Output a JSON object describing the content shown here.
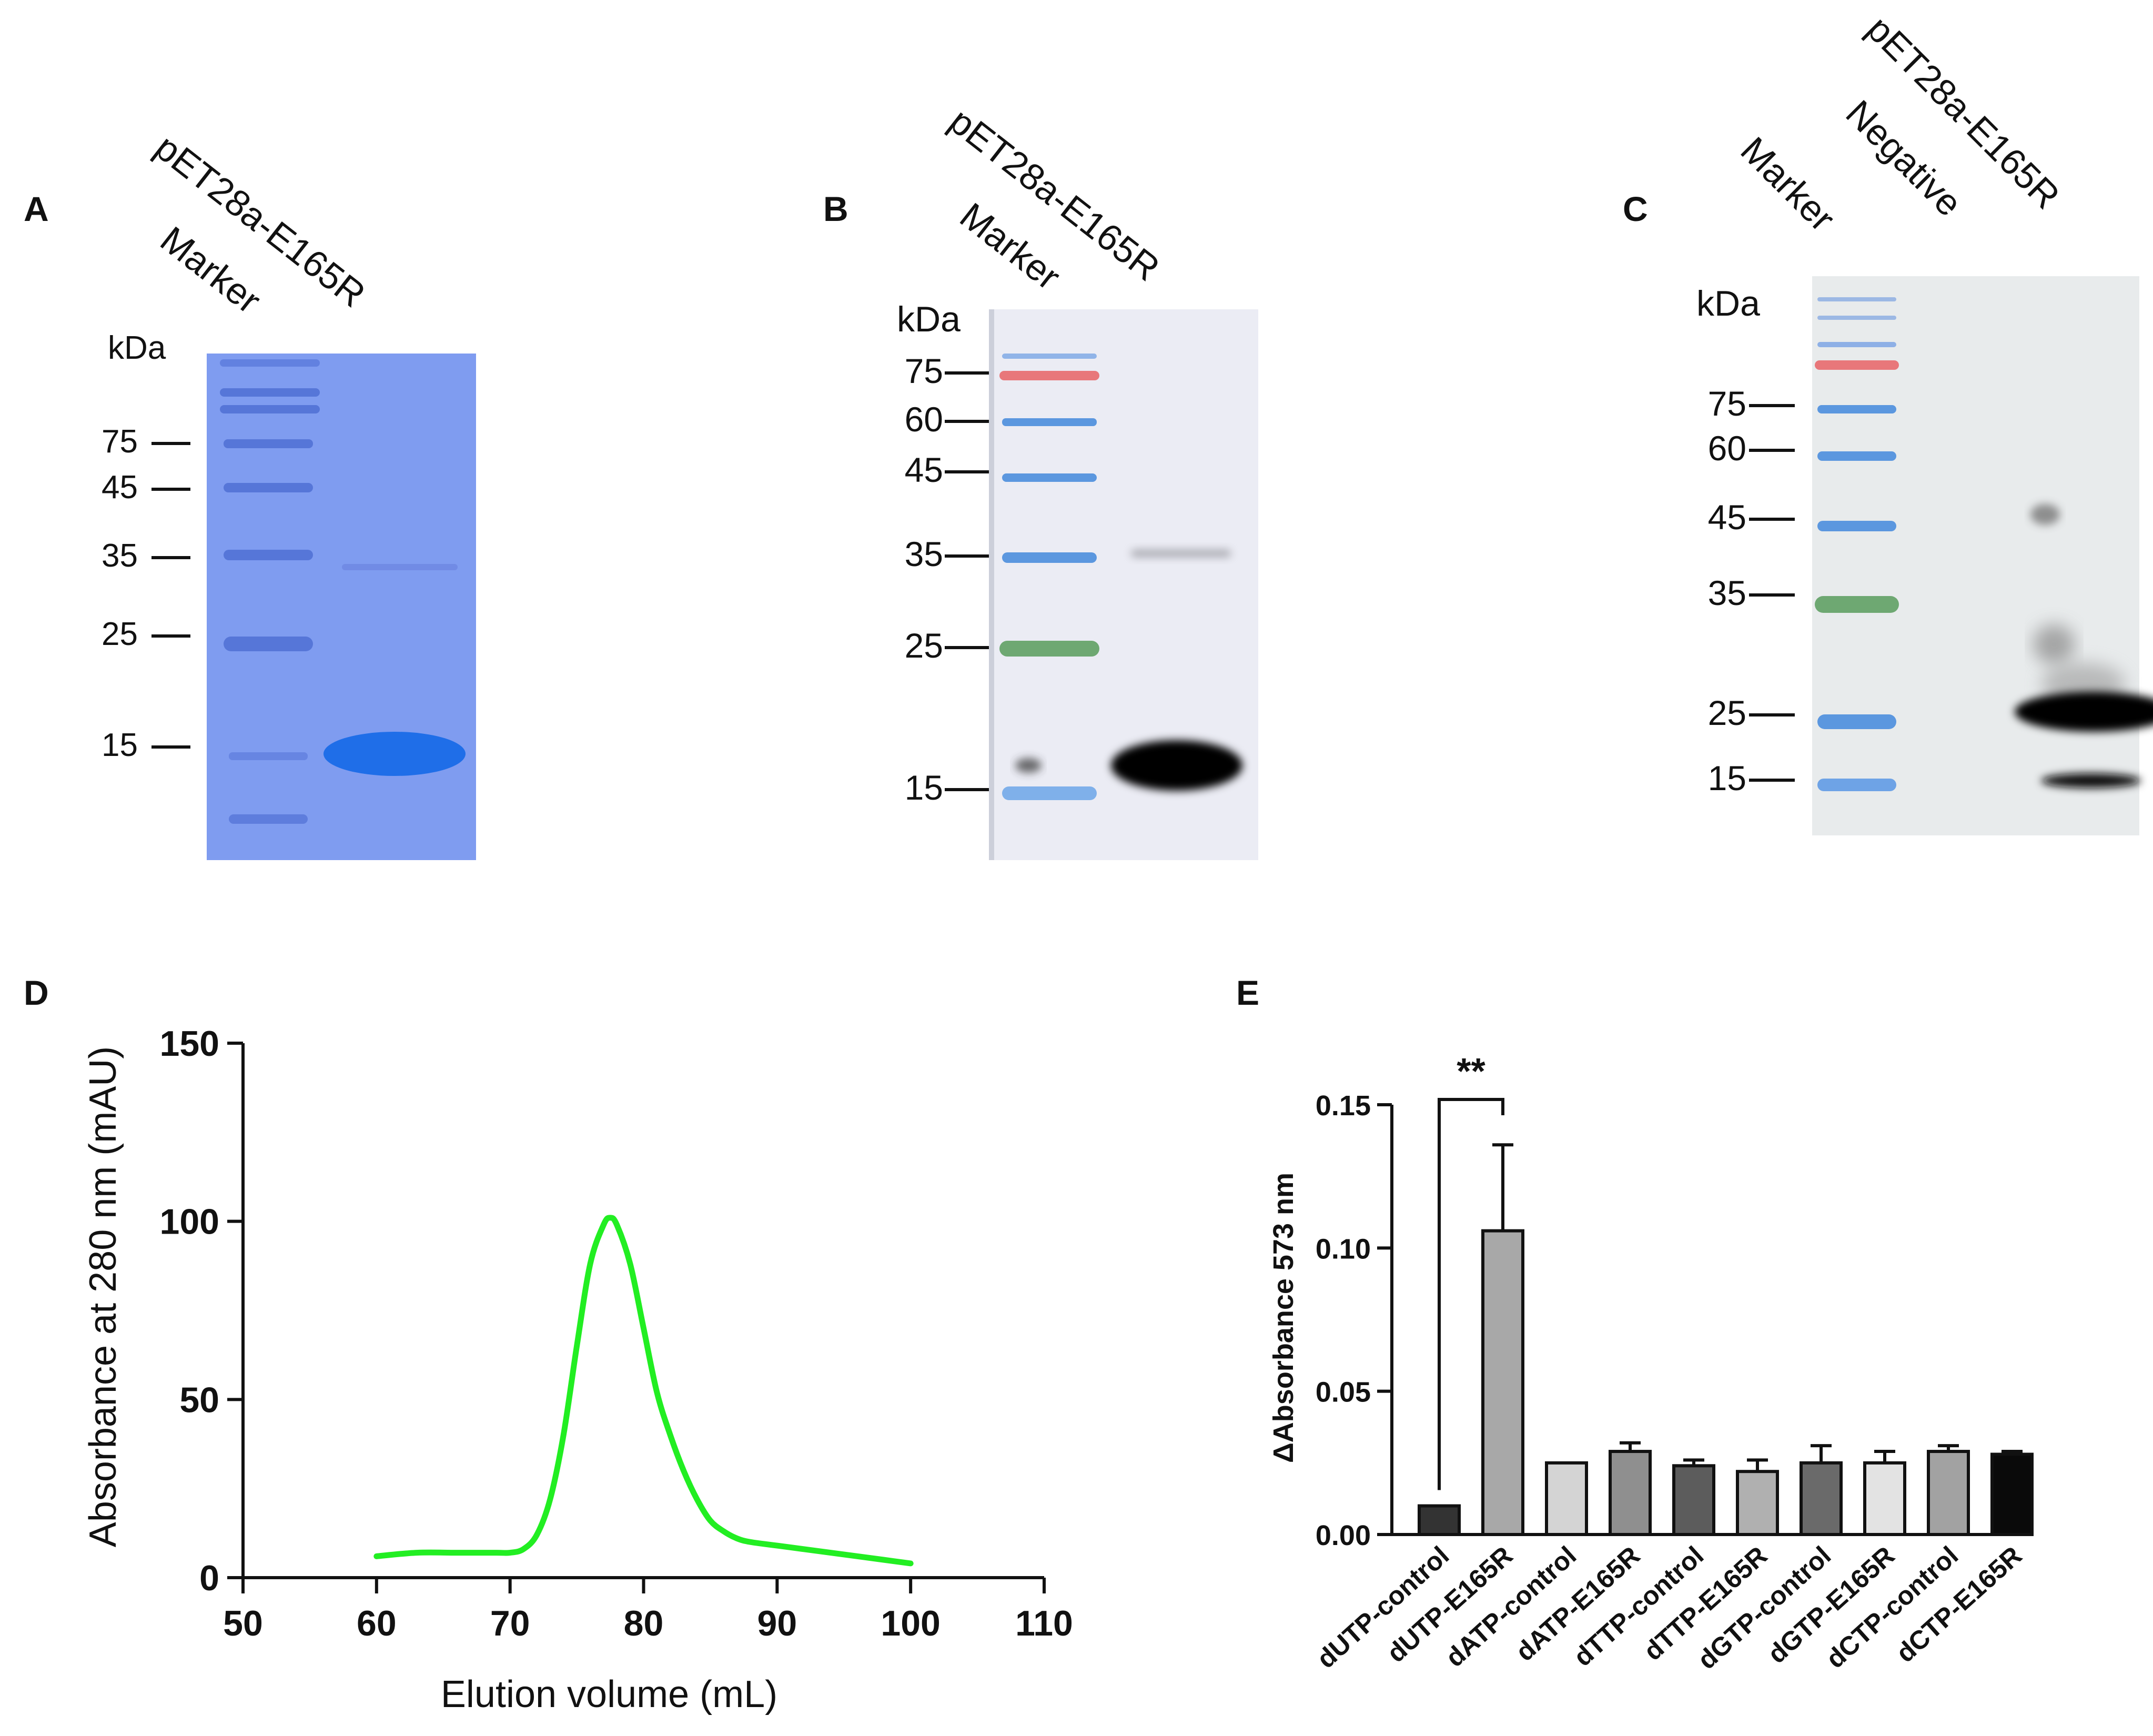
{
  "panels": {
    "A": {
      "letter": "A",
      "lanes": [
        "Marker",
        "pET28a-E165R"
      ],
      "kda_label": "kDa",
      "markers": [
        "75",
        "45",
        "35",
        "25",
        "15"
      ]
    },
    "B": {
      "letter": "B",
      "lanes": [
        "Marker",
        "pET28a-E165R"
      ],
      "kda_label": "kDa",
      "markers": [
        "75",
        "60",
        "45",
        "35",
        "25",
        "15"
      ]
    },
    "C": {
      "letter": "C",
      "lanes": [
        "Marker",
        "Negative",
        "pET28a-E165R"
      ],
      "kda_label": "kDa",
      "markers": [
        "75",
        "60",
        "45",
        "35",
        "25",
        "15"
      ]
    },
    "D": {
      "letter": "D"
    },
    "E": {
      "letter": "E",
      "significance": "**"
    }
  },
  "colors": {
    "coomassie_gel": "#7f9cf0",
    "coomassie_band": "#1f6ee8",
    "membrane_b": "#ebecf4",
    "membrane_c": "#e8ebec",
    "curve": "#22ee22",
    "red_marker": "#e8777a",
    "green_marker": "#6ea872",
    "blue_marker": "#5b97df"
  },
  "chart_data": [
    {
      "type": "line",
      "panel": "D",
      "title": "",
      "xlabel": "Elution volume (mL)",
      "ylabel": "Absorbance at 280 nm (mAU)",
      "xlim": [
        50,
        110
      ],
      "ylim": [
        0,
        150
      ],
      "xticks": [
        "50",
        "60",
        "70",
        "80",
        "90",
        "100",
        "110"
      ],
      "yticks": [
        "0",
        "50",
        "100",
        "150"
      ],
      "series": [
        {
          "name": "absorbance",
          "color": "#22ee22",
          "x": [
            60,
            63,
            66,
            69,
            70,
            71,
            72,
            73,
            74,
            75,
            76,
            77,
            77.5,
            78,
            79,
            80,
            81,
            82,
            83,
            84,
            85,
            86,
            87,
            88,
            90,
            92,
            94,
            96,
            98,
            100
          ],
          "y": [
            6,
            7,
            7,
            7,
            7,
            8,
            12,
            22,
            40,
            65,
            88,
            99,
            101,
            99,
            88,
            70,
            52,
            40,
            30,
            22,
            16,
            13,
            11,
            10,
            9,
            8,
            7,
            6,
            5,
            4
          ]
        }
      ]
    },
    {
      "type": "bar",
      "panel": "E",
      "title": "",
      "xlabel": "",
      "ylabel": "ΔAbsorbance 573 nm",
      "ylim": [
        0,
        0.15
      ],
      "yticks": [
        "0.00",
        "0.05",
        "0.10",
        "0.15"
      ],
      "categories": [
        "dUTP-control",
        "dUTP-E165R",
        "dATP-control",
        "dATP-E165R",
        "dTTP-control",
        "dTTP-E165R",
        "dGTP-control",
        "dGTP-E165R",
        "dCTP-control",
        "dCTP-E165R"
      ],
      "values": [
        0.01,
        0.106,
        0.025,
        0.029,
        0.024,
        0.022,
        0.025,
        0.025,
        0.029,
        0.028
      ],
      "errors": [
        0.0,
        0.03,
        0.0,
        0.003,
        0.002,
        0.004,
        0.006,
        0.004,
        0.002,
        0.001
      ],
      "fills": [
        "#333333",
        "#a8a8a8",
        "#d4d4d4",
        "#8f8f8f",
        "#5c5c5c",
        "#b0b0b0",
        "#6a6a6a",
        "#e3e3e3",
        "#a2a2a2",
        "#0a0a0a"
      ],
      "significance": {
        "between": [
          0,
          1
        ],
        "label": "**"
      }
    }
  ]
}
